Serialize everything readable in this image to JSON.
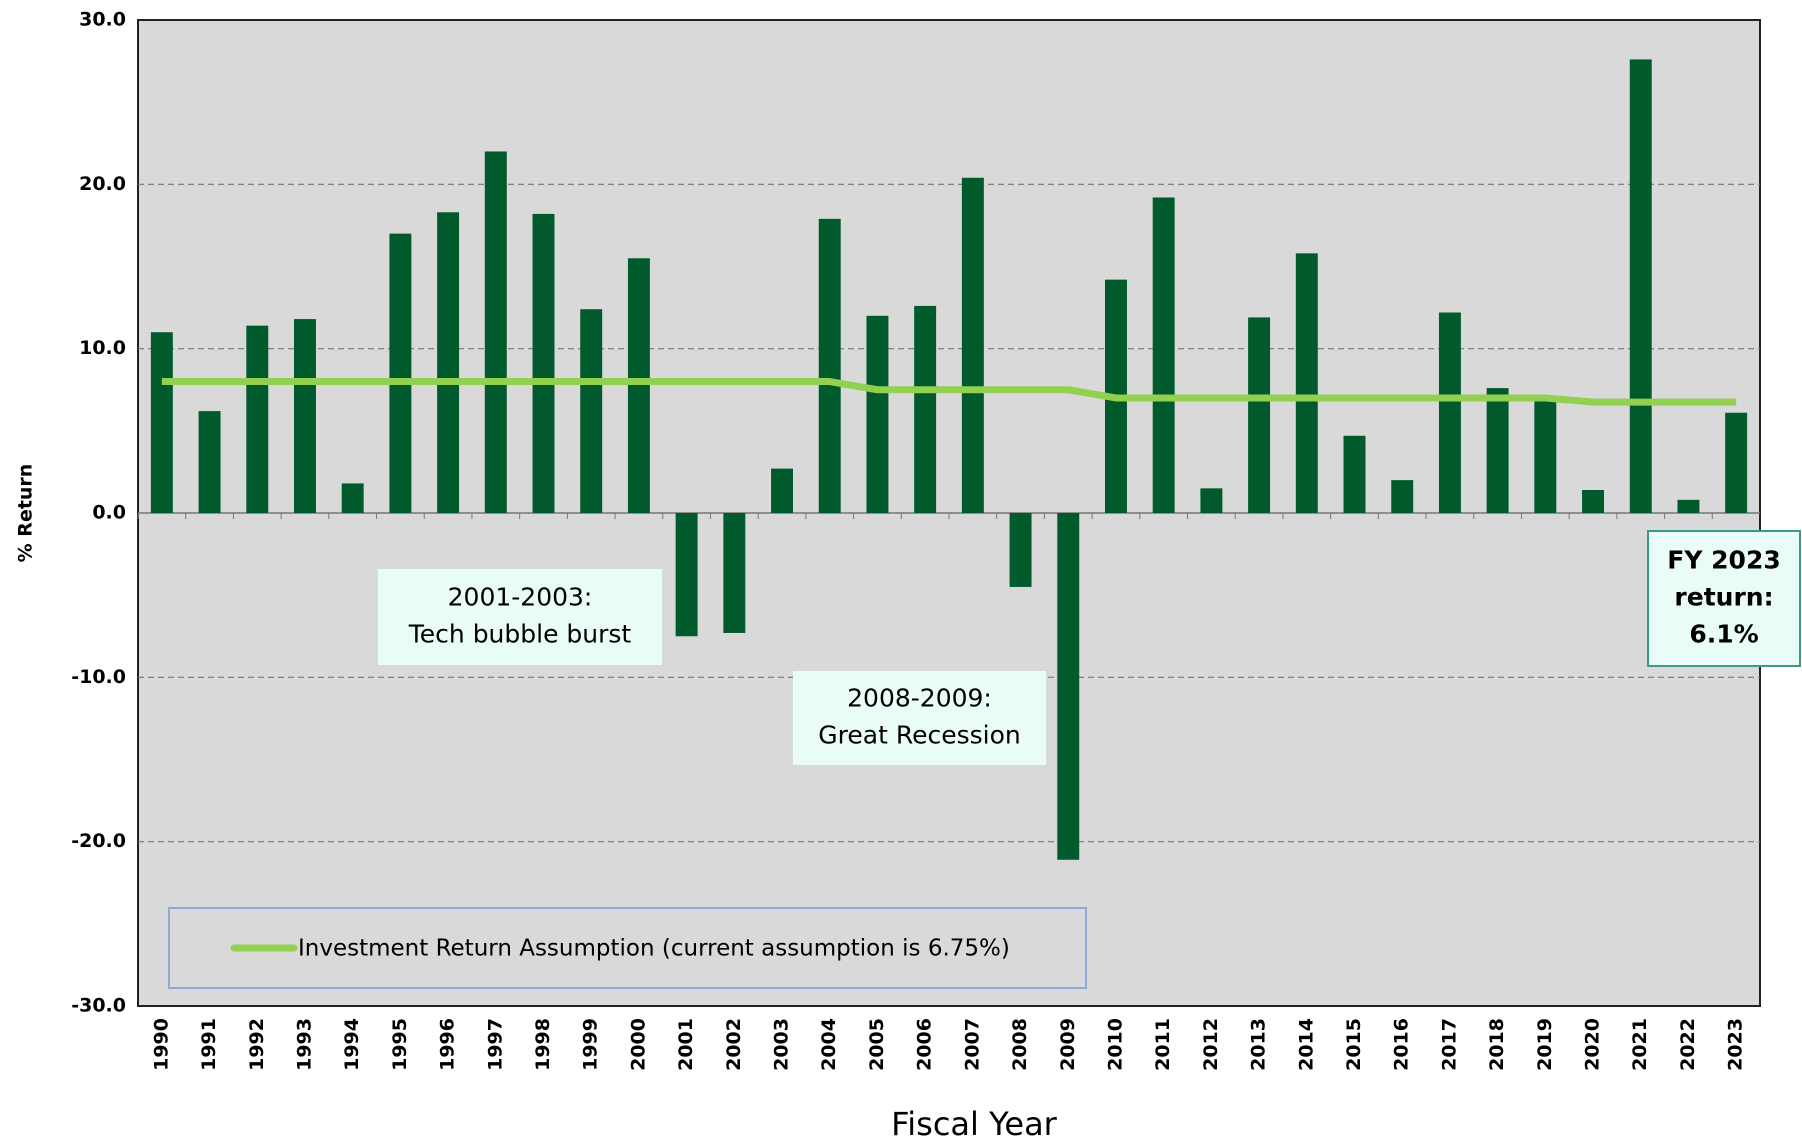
{
  "chart_data": {
    "type": "bar",
    "x_label": "Fiscal Year",
    "y_label": "% Return",
    "categories": [
      "1990",
      "1991",
      "1992",
      "1993",
      "1994",
      "1995",
      "1996",
      "1997",
      "1998",
      "1999",
      "2000",
      "2001",
      "2002",
      "2003",
      "2004",
      "2005",
      "2006",
      "2007",
      "2008",
      "2009",
      "2010",
      "2011",
      "2012",
      "2013",
      "2014",
      "2015",
      "2016",
      "2017",
      "2018",
      "2019",
      "2020",
      "2021",
      "2022",
      "2023"
    ],
    "series": [
      {
        "name": "Annual Return",
        "color": "#005a2b",
        "values": [
          11.0,
          6.2,
          11.4,
          11.8,
          1.8,
          17.0,
          18.3,
          22.0,
          18.2,
          12.4,
          15.5,
          -7.5,
          -7.3,
          2.7,
          17.9,
          12.0,
          12.6,
          20.4,
          -4.5,
          -21.1,
          14.2,
          19.2,
          1.5,
          11.9,
          15.8,
          4.7,
          2.0,
          12.2,
          7.6,
          7.0,
          1.4,
          27.6,
          0.8,
          6.1
        ]
      },
      {
        "name": "Investment Return Assumption (current assumption is 6.75%)",
        "type": "line",
        "color": "#92d050",
        "values": [
          8.0,
          8.0,
          8.0,
          8.0,
          8.0,
          8.0,
          8.0,
          8.0,
          8.0,
          8.0,
          8.0,
          8.0,
          8.0,
          8.0,
          8.0,
          7.5,
          7.5,
          7.5,
          7.5,
          7.5,
          7.0,
          7.0,
          7.0,
          7.0,
          7.0,
          7.0,
          7.0,
          7.0,
          7.0,
          7.0,
          6.75,
          6.75,
          6.75,
          6.75
        ]
      }
    ],
    "ylim": [
      -30,
      30
    ],
    "yticks": [
      {
        "value": -30,
        "label": "-30.0"
      },
      {
        "value": -20,
        "label": "-20.0"
      },
      {
        "value": -10,
        "label": "-10.0"
      },
      {
        "value": 0,
        "label": "0.0"
      },
      {
        "value": 10,
        "label": "10.0"
      },
      {
        "value": 20,
        "label": "20.0"
      },
      {
        "value": 30,
        "label": "30.0"
      }
    ],
    "grid": true,
    "legend": "lower left",
    "annotations": [
      {
        "lines": [
          "2001-2003:",
          "Tech bubble burst"
        ]
      },
      {
        "lines": [
          "2008-2009:",
          "Great Recession"
        ]
      },
      {
        "lines": [
          "FY 2023",
          "return:",
          "6.1%"
        ]
      }
    ]
  }
}
